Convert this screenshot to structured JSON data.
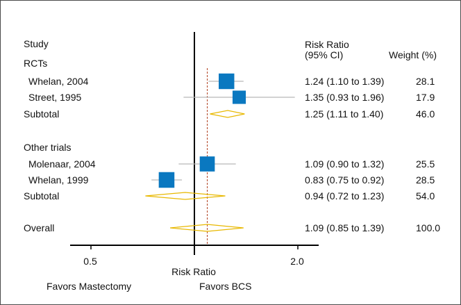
{
  "chart_data": {
    "type": "forest",
    "headers": {
      "study": "Study",
      "ratio_line1": "Risk Ratio",
      "ratio_line2": "(95% CI)",
      "weight": "Weight (%)"
    },
    "groups": [
      {
        "label": "RCTs",
        "studies": [
          {
            "name": "Whelan, 2004",
            "estimate": 1.24,
            "lower": 1.1,
            "upper": 1.39,
            "ci_text": "1.24 (1.10 to 1.39)",
            "weight": "28.1"
          },
          {
            "name": "Street, 1995",
            "estimate": 1.35,
            "lower": 0.93,
            "upper": 1.96,
            "ci_text": "1.35 (0.93 to 1.96)",
            "weight": "17.9"
          }
        ],
        "subtotal": {
          "label": "Subtotal",
          "estimate": 1.25,
          "lower": 1.11,
          "upper": 1.4,
          "ci_text": "1.25 (1.11 to 1.40)",
          "weight": "46.0"
        }
      },
      {
        "label": "Other trials",
        "studies": [
          {
            "name": "Molenaar, 2004",
            "estimate": 1.09,
            "lower": 0.9,
            "upper": 1.32,
            "ci_text": "1.09 (0.90 to 1.32)",
            "weight": "25.5"
          },
          {
            "name": "Whelan, 1999",
            "estimate": 0.83,
            "lower": 0.75,
            "upper": 0.92,
            "ci_text": "0.83 (0.75 to 0.92)",
            "weight": "28.5"
          }
        ],
        "subtotal": {
          "label": "Subtotal",
          "estimate": 0.94,
          "lower": 0.72,
          "upper": 1.23,
          "ci_text": "0.94 (0.72 to 1.23)",
          "weight": "54.0"
        }
      }
    ],
    "overall": {
      "label": "Overall",
      "estimate": 1.09,
      "lower": 0.85,
      "upper": 1.39,
      "ci_text": "1.09 (0.85 to 1.39)",
      "weight": "100.0"
    },
    "x_axis": {
      "scale": "log",
      "ticks": [
        0.5,
        2.0
      ],
      "tick_labels": [
        "0.5",
        "2.0"
      ],
      "null_value": 1,
      "label": "Risk Ratio",
      "left_label": "Favors Mastectomy",
      "right_label": "Favors BCS"
    },
    "colors": {
      "study_marker": "#0a78c0",
      "diamond": "#e8b800",
      "ci_line": "#b8b8b8",
      "reference_line": "#b04020",
      "axis": "#000000"
    }
  }
}
